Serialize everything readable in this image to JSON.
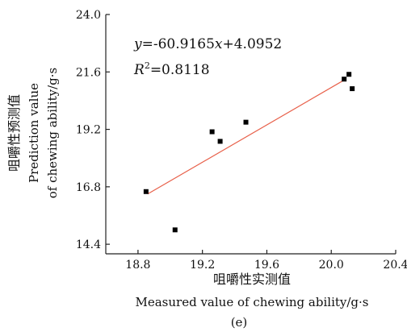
{
  "chart_data": {
    "type": "scatter",
    "panel_label": "(e)",
    "xlabel_cn": "咀嚼性实测值",
    "xlabel_en": "Measured value of chewing ability/g·s",
    "ylabel_cn": "咀嚼性预测值",
    "ylabel_en_line1": "Prediction value",
    "ylabel_en_line2": "of chewing ability/g·s",
    "xlim": [
      18.6,
      20.4
    ],
    "ylim": [
      14.0,
      24.0
    ],
    "xticks": [
      18.8,
      19.2,
      19.6,
      20.0,
      20.4
    ],
    "xtick_labels": [
      "18.8",
      "19.2",
      "19.6",
      "20.0",
      "20.4"
    ],
    "yticks": [
      14.4,
      16.8,
      19.2,
      21.6,
      24.0
    ],
    "ytick_labels": [
      "14.4",
      "16.8",
      "19.2",
      "21.6",
      "24.0"
    ],
    "points": [
      {
        "x": 18.85,
        "y": 16.6
      },
      {
        "x": 19.03,
        "y": 15.0
      },
      {
        "x": 19.26,
        "y": 19.1
      },
      {
        "x": 19.31,
        "y": 18.7
      },
      {
        "x": 19.47,
        "y": 19.5
      },
      {
        "x": 20.08,
        "y": 21.3
      },
      {
        "x": 20.11,
        "y": 21.5
      },
      {
        "x": 20.13,
        "y": 20.9
      }
    ],
    "fit_line": {
      "x": [
        18.86,
        20.09
      ],
      "y": [
        16.5,
        21.3
      ]
    },
    "equation": {
      "y": "y",
      "eq_text": "=-60.9165",
      "x": "x",
      "rest": "+4.0952"
    },
    "r2": {
      "R": "R",
      "sup": "2",
      "value": "=0.8118"
    },
    "colors": {
      "points": "#000000",
      "fit_line": "#e8604a",
      "axis": "#222222"
    }
  }
}
